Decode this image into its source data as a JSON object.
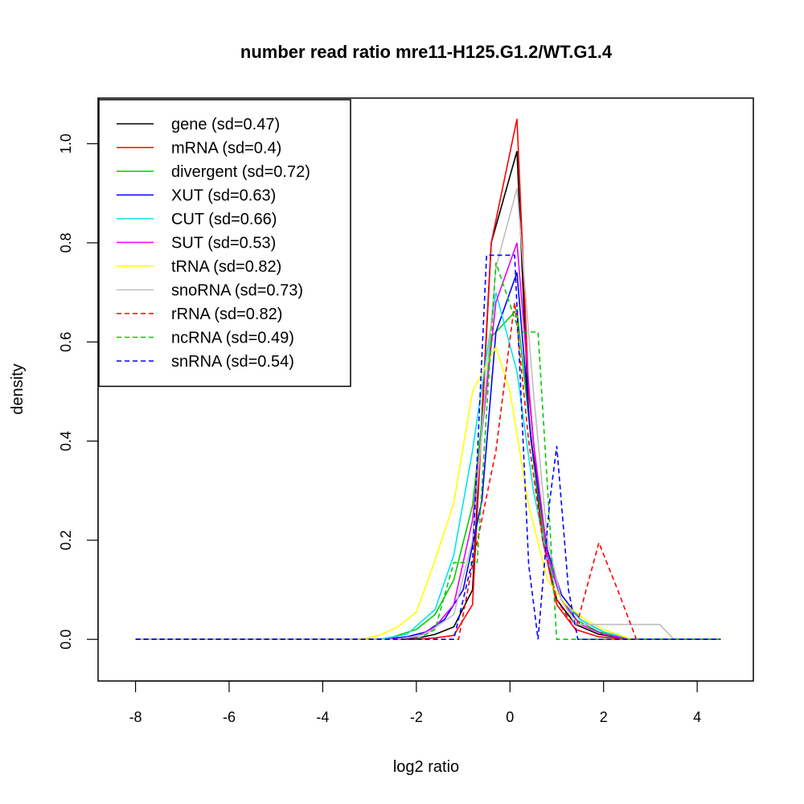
{
  "chart_data": {
    "type": "line",
    "title": "number read ratio mre11-H125.G1.2/WT.G1.4",
    "xlabel": "log2 ratio",
    "ylabel": "density",
    "xlim": [
      -8.8,
      5.2
    ],
    "ylim": [
      -0.084,
      1.092
    ],
    "x_ticks": [
      -8,
      -6,
      -4,
      -2,
      0,
      2,
      4
    ],
    "x_tick_labels": [
      "-8",
      "-6",
      "-4",
      "-2",
      "0",
      "2",
      "4"
    ],
    "y_ticks": [
      0.0,
      0.2,
      0.4,
      0.6,
      0.8,
      1.0
    ],
    "y_tick_labels": [
      "0.0",
      "0.2",
      "0.4",
      "0.6",
      "0.8",
      "1.0"
    ],
    "grid": false,
    "legend_position": "top-left",
    "series": [
      {
        "name": "gene (sd=0.47)",
        "color": "#000000",
        "dash": "solid",
        "x": [
          -8,
          -3.2,
          -2.4,
          -2,
          -1.6,
          -1.2,
          -0.8,
          -0.4,
          0.15,
          0.4,
          0.7,
          1.0,
          1.4,
          1.9,
          2.6,
          4.5
        ],
        "y": [
          0,
          0,
          0,
          0.002,
          0.01,
          0.025,
          0.1,
          0.8,
          0.985,
          0.45,
          0.2,
          0.08,
          0.03,
          0.01,
          0,
          0
        ]
      },
      {
        "name": "mRNA (sd=0.4)",
        "color": "#ff0000",
        "dash": "solid",
        "x": [
          -8,
          -2.4,
          -2,
          -1.6,
          -1.2,
          -0.8,
          -0.4,
          0.15,
          0.4,
          0.7,
          1.0,
          1.4,
          1.9,
          2.6,
          4.5
        ],
        "y": [
          0,
          0,
          0,
          0.003,
          0.008,
          0.07,
          0.8,
          1.05,
          0.5,
          0.2,
          0.07,
          0.02,
          0.005,
          0,
          0
        ]
      },
      {
        "name": "divergent (sd=0.72)",
        "color": "#00cd00",
        "dash": "solid",
        "x": [
          -8,
          -3,
          -2.6,
          -2,
          -1.6,
          -1.2,
          -0.8,
          -0.4,
          0.15,
          0.5,
          0.8,
          1.1,
          1.4,
          1.9,
          2.6,
          4.5
        ],
        "y": [
          0,
          0,
          0.002,
          0.02,
          0.05,
          0.12,
          0.27,
          0.61,
          0.665,
          0.36,
          0.16,
          0.08,
          0.04,
          0.015,
          0,
          0
        ]
      },
      {
        "name": "XUT (sd=0.63)",
        "color": "#0000ff",
        "dash": "solid",
        "x": [
          -8,
          -2.8,
          -2.2,
          -1.8,
          -1.4,
          -1.0,
          -0.6,
          -0.3,
          0.15,
          0.45,
          0.8,
          1.1,
          1.5,
          2.0,
          2.6,
          4.5
        ],
        "y": [
          0,
          0,
          0.005,
          0.015,
          0.04,
          0.1,
          0.28,
          0.62,
          0.74,
          0.4,
          0.18,
          0.09,
          0.04,
          0.015,
          0,
          0
        ]
      },
      {
        "name": "CUT (sd=0.66)",
        "color": "#00e5ee",
        "dash": "solid",
        "x": [
          -8,
          -2.8,
          -2.2,
          -1.6,
          -1.2,
          -0.8,
          -0.3,
          0.15,
          0.5,
          0.8,
          1.1,
          1.5,
          2.0,
          2.6,
          4.5
        ],
        "y": [
          0,
          0,
          0.01,
          0.06,
          0.17,
          0.38,
          0.7,
          0.54,
          0.3,
          0.16,
          0.08,
          0.04,
          0.015,
          0,
          0
        ]
      },
      {
        "name": "SUT (sd=0.53)",
        "color": "#ee00ee",
        "dash": "solid",
        "x": [
          -8,
          -2.6,
          -2,
          -1.6,
          -1.2,
          -0.8,
          -0.3,
          0.15,
          0.5,
          0.8,
          1.1,
          1.5,
          2.0,
          2.6,
          4.5
        ],
        "y": [
          0,
          0,
          0.005,
          0.025,
          0.07,
          0.24,
          0.68,
          0.8,
          0.4,
          0.17,
          0.08,
          0.03,
          0.01,
          0,
          0
        ]
      },
      {
        "name": "tRNA (sd=0.82)",
        "color": "#ffff00",
        "dash": "solid",
        "x": [
          -8,
          -3.2,
          -2.8,
          -2.4,
          -2.0,
          -1.6,
          -1.2,
          -0.8,
          -0.3,
          0,
          0.4,
          0.8,
          1.2,
          1.6,
          2.0,
          2.6,
          4.5
        ],
        "y": [
          0,
          0,
          0.008,
          0.025,
          0.055,
          0.16,
          0.275,
          0.5,
          0.59,
          0.5,
          0.27,
          0.12,
          0.07,
          0.04,
          0.02,
          0,
          0
        ]
      },
      {
        "name": "snoRNA (sd=0.73)",
        "color": "#bebebe",
        "dash": "solid",
        "x": [
          -8,
          -2.4,
          -1.8,
          -1.2,
          -0.8,
          -0.3,
          0.15,
          0.5,
          0.8,
          1.1,
          1.4,
          2.0,
          2.6,
          3.2,
          3.5,
          4.5
        ],
        "y": [
          0,
          0,
          0.01,
          0.05,
          0.2,
          0.75,
          0.91,
          0.5,
          0.2,
          0.08,
          0.03,
          0.03,
          0.03,
          0.03,
          0,
          0
        ]
      },
      {
        "name": "rRNA (sd=0.82)",
        "color": "#ff0000",
        "dash": "dashed",
        "x": [
          -8,
          -2.0,
          -1.1,
          -0.8,
          -0.3,
          0.1,
          0.4,
          0.7,
          1.0,
          1.4,
          1.9,
          2.3,
          2.7,
          4.5
        ],
        "y": [
          0,
          0,
          0,
          0.15,
          0.38,
          0.68,
          0.4,
          0.2,
          0.08,
          0.02,
          0.195,
          0.1,
          0,
          0
        ]
      },
      {
        "name": "ncRNA (sd=0.49)",
        "color": "#00cd00",
        "dash": "dashed",
        "x": [
          -8,
          -2.0,
          -1.6,
          -1.2,
          -0.7,
          -0.3,
          0.2,
          0.6,
          1.0,
          1.1,
          4.5
        ],
        "y": [
          0,
          0,
          0.02,
          0.155,
          0.155,
          0.76,
          0.62,
          0.62,
          0,
          0,
          0
        ]
      },
      {
        "name": "snRNA (sd=0.54)",
        "color": "#0000ff",
        "dash": "dashed",
        "x": [
          -8,
          -1.2,
          -0.8,
          -0.5,
          0.1,
          0.4,
          0.6,
          0.85,
          1.0,
          1.25,
          1.45,
          4.5
        ],
        "y": [
          0,
          0,
          0.16,
          0.775,
          0.775,
          0.15,
          0,
          0.28,
          0.39,
          0.1,
          0,
          0
        ]
      }
    ]
  }
}
